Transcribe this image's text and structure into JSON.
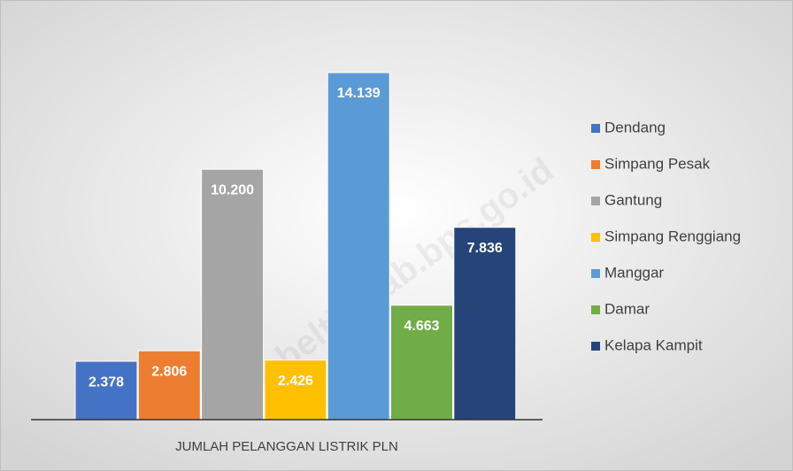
{
  "chart_data": {
    "type": "bar",
    "categories": [
      "JUMLAH PELANGGAN LISTRIK PLN"
    ],
    "series": [
      {
        "name": "Dendang",
        "color": "#4472c4",
        "values": [
          2378
        ],
        "value_labels": [
          "2.378"
        ]
      },
      {
        "name": "Simpang Pesak",
        "color": "#ed7d31",
        "values": [
          2806
        ],
        "value_labels": [
          "2.806"
        ]
      },
      {
        "name": "Gantung",
        "color": "#a5a5a5",
        "values": [
          10200
        ],
        "value_labels": [
          "10.200"
        ]
      },
      {
        "name": "Simpang Renggiang",
        "color": "#ffc000",
        "values": [
          2426
        ],
        "value_labels": [
          "2.426"
        ]
      },
      {
        "name": "Manggar",
        "color": "#5b9bd5",
        "values": [
          14139
        ],
        "value_labels": [
          "14.139"
        ]
      },
      {
        "name": "Damar",
        "color": "#70ad47",
        "values": [
          4663
        ],
        "value_labels": [
          "4.663"
        ]
      },
      {
        "name": "Kelapa Kampit",
        "color": "#264478",
        "values": [
          7836
        ],
        "value_labels": [
          "7.836"
        ]
      }
    ],
    "legend": "right",
    "watermark": "beltimkab.bps.go.id"
  }
}
